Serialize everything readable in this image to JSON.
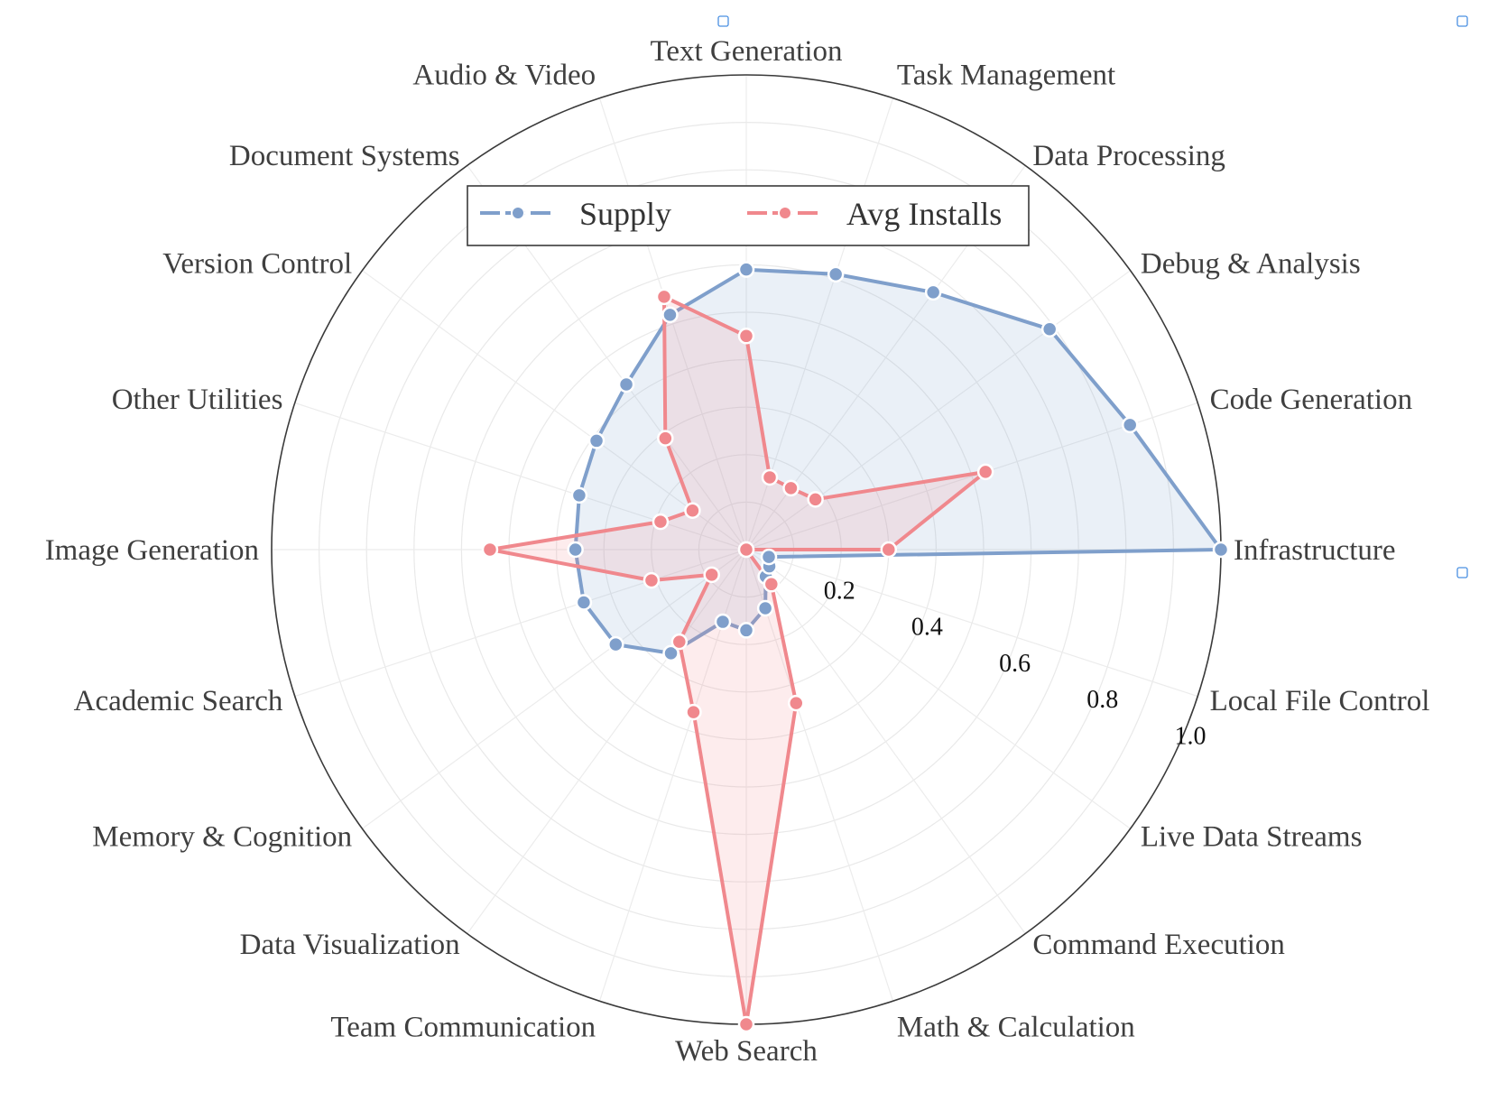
{
  "chart_data": {
    "type": "radar",
    "categories": [
      "Infrastructure",
      "Code Generation",
      "Debug & Analysis",
      "Data Processing",
      "Task Management",
      "Text Generation",
      "Audio & Video",
      "Document Systems",
      "Version Control",
      "Other Utilities",
      "Image Generation",
      "Academic Search",
      "Memory & Cognition",
      "Data Visualization",
      "Team Communication",
      "Web Search",
      "Math & Calculation",
      "Command Execution",
      "Live Data Streams",
      "Local File Control"
    ],
    "series": [
      {
        "name": "Supply",
        "color": "#7f9fcb",
        "fill": "rgba(127,159,203,0.16)",
        "values": [
          1.0,
          0.85,
          0.79,
          0.67,
          0.61,
          0.59,
          0.52,
          0.43,
          0.39,
          0.37,
          0.36,
          0.36,
          0.34,
          0.27,
          0.16,
          0.17,
          0.13,
          0.07,
          0.06,
          0.05
        ]
      },
      {
        "name": "Avg Installs",
        "color": "#f0888d",
        "fill": "rgba(240,136,141,0.16)",
        "values": [
          0.3,
          0.53,
          0.18,
          0.16,
          0.16,
          0.45,
          0.56,
          0.29,
          0.14,
          0.19,
          0.54,
          0.21,
          0.09,
          0.24,
          0.36,
          1.0,
          0.34,
          0.09,
          0.0,
          0.0
        ]
      }
    ],
    "radial_ticks": [
      "0.2",
      "0.4",
      "0.6",
      "0.8",
      "1.0"
    ],
    "rlim": [
      0,
      1.0
    ],
    "grid": true,
    "legend": "upper-center"
  }
}
